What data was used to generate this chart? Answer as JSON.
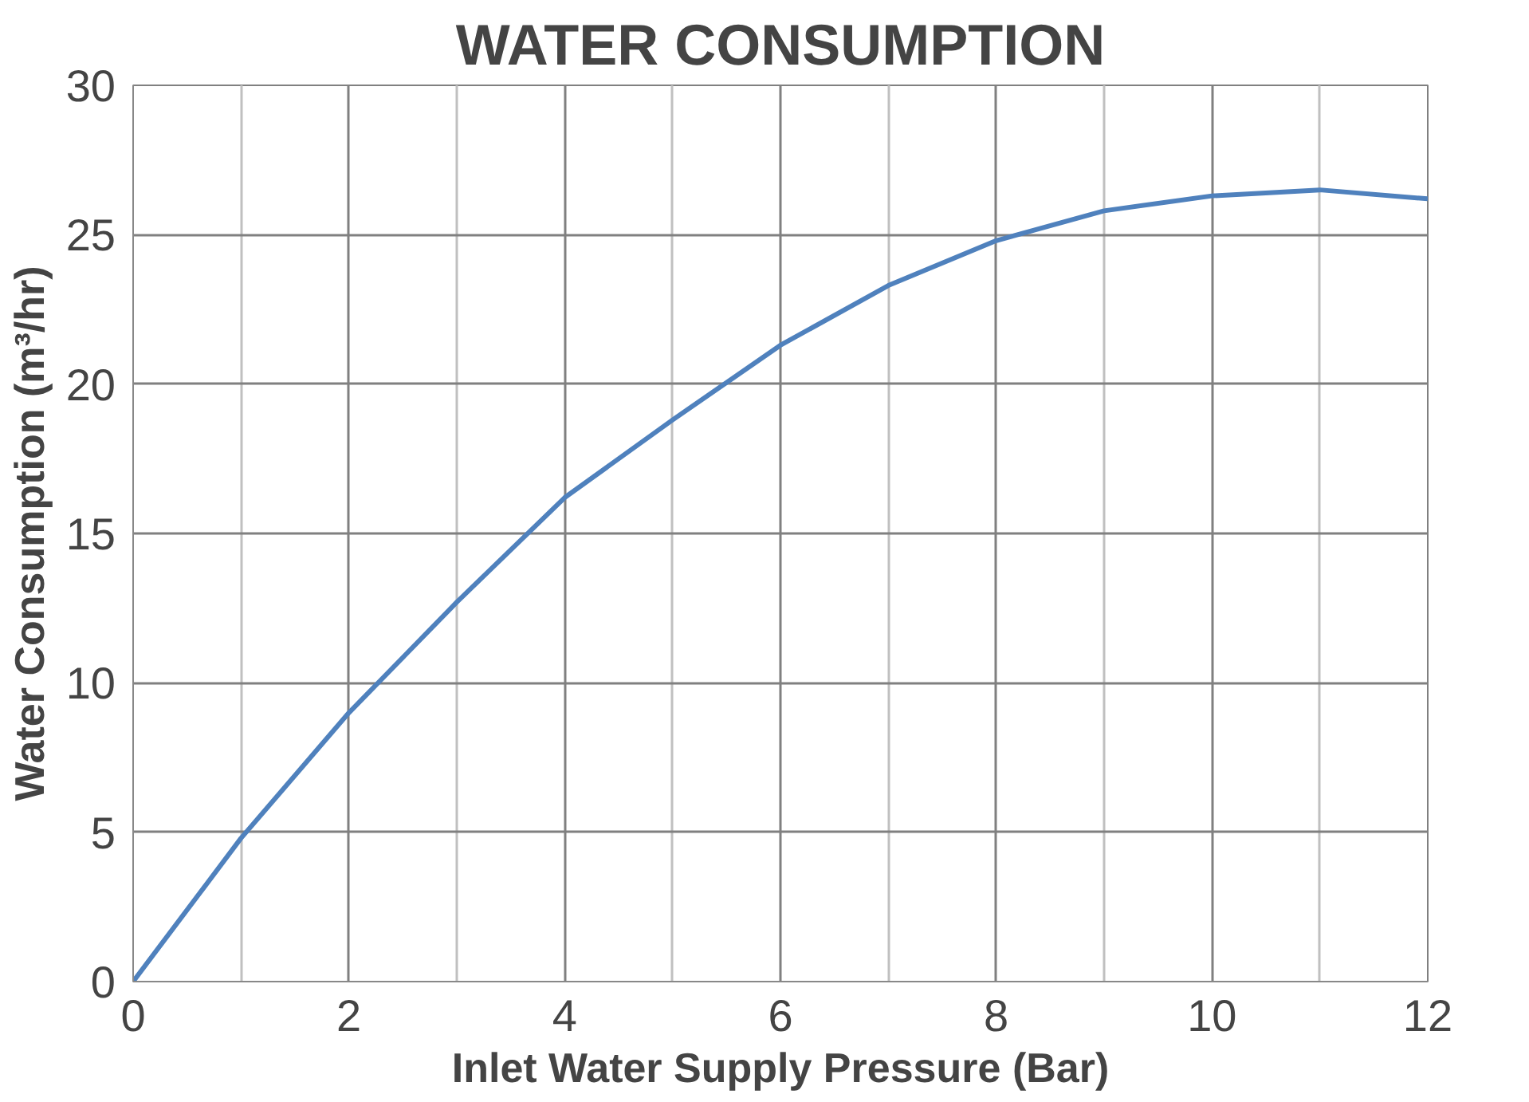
{
  "chart_data": {
    "type": "line",
    "title": "WATER CONSUMPTION",
    "xlabel": "Inlet Water Supply Pressure (Bar)",
    "ylabel": "Water Consumption (m³/hr)",
    "x": [
      0,
      1,
      2,
      3,
      4,
      5,
      6,
      7,
      8,
      9,
      10,
      11,
      12
    ],
    "series": [
      {
        "color": "#4f81bd",
        "values": [
          0,
          4.8,
          9.0,
          12.7,
          16.2,
          18.8,
          21.3,
          23.3,
          24.8,
          25.8,
          26.3,
          26.5,
          26.2
        ]
      }
    ],
    "xlim": [
      0,
      12
    ],
    "xticks": [
      0,
      2,
      4,
      6,
      8,
      10,
      12
    ],
    "ylim": [
      0,
      30
    ],
    "yticks": [
      0,
      5,
      10,
      15,
      20,
      25,
      30
    ],
    "grid": true,
    "marker": "none",
    "line_style": "solid"
  }
}
